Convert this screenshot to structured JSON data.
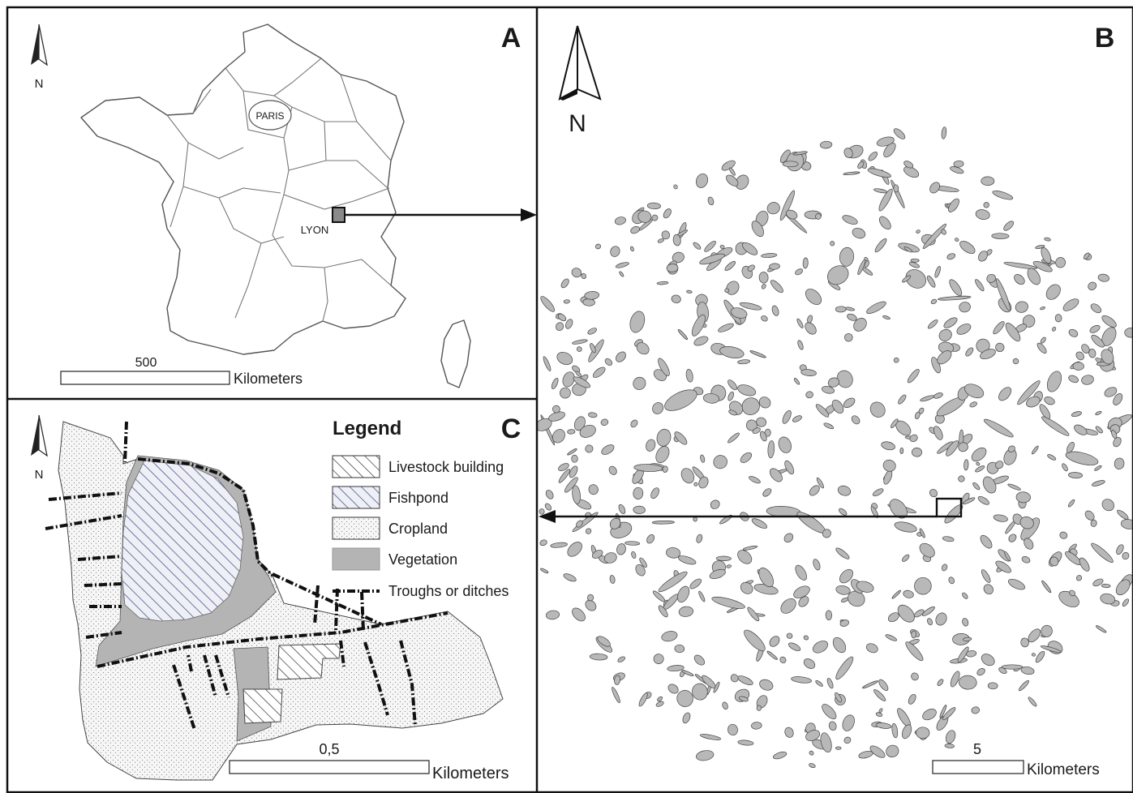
{
  "panels": {
    "a": {
      "letter": "A",
      "north": "N",
      "cities": {
        "paris": "PARIS",
        "lyon": "LYON"
      },
      "scale": {
        "value": "500",
        "unit": "Kilometers"
      }
    },
    "b": {
      "letter": "B",
      "north": "N",
      "scale": {
        "value": "5",
        "unit": "Kilometers"
      }
    },
    "c": {
      "letter": "C",
      "north": "N",
      "scale": {
        "value": "0,5",
        "unit": "Kilometers"
      },
      "legend": {
        "title": "Legend",
        "items": [
          {
            "label": "Livestock building",
            "pattern": "hatch-black"
          },
          {
            "label": "Fishpond",
            "pattern": "hatch-blue"
          },
          {
            "label": "Cropland",
            "pattern": "dots"
          },
          {
            "label": "Vegetation",
            "pattern": "solid-gray"
          },
          {
            "label": "Troughs or ditches",
            "pattern": "dash-dot-line"
          }
        ]
      }
    }
  },
  "colors": {
    "frame": "#111111",
    "boundary": "#555555",
    "vegetation": "#b4b4b4",
    "cropland_bg": "#f4f4f4",
    "fishpond_hatch": "#4a5a8c",
    "inset_fill": "#888888"
  }
}
